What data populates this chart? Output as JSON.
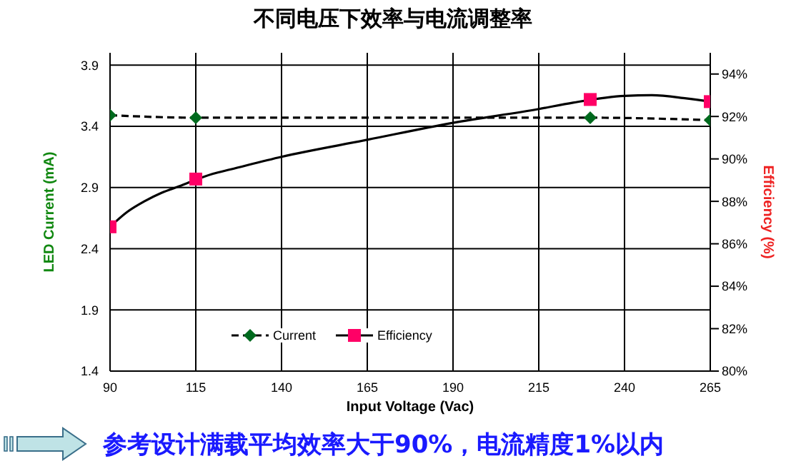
{
  "chart_data": {
    "type": "line",
    "title": "不同电压下效率与电流调整率",
    "xlabel": "Input Voltage (Vac)",
    "ylabel": "LED Current (mA)",
    "y2label": "Efficiency (%)",
    "xlim": [
      90,
      265
    ],
    "xticks": [
      90,
      115,
      140,
      165,
      190,
      215,
      240,
      265
    ],
    "ylim": [
      1.4,
      4.0
    ],
    "yticks": [
      1.4,
      1.9,
      2.4,
      2.9,
      3.4,
      3.9
    ],
    "y2lim": [
      80,
      95
    ],
    "y2ticks": [
      {
        "value": 80,
        "label": "80%"
      },
      {
        "value": 82,
        "label": "82%"
      },
      {
        "value": 84,
        "label": "84%"
      },
      {
        "value": 86,
        "label": "86%"
      },
      {
        "value": 88,
        "label": "88%"
      },
      {
        "value": 90,
        "label": "90%"
      },
      {
        "value": 92,
        "label": "92%"
      },
      {
        "value": 94,
        "label": "94%"
      }
    ],
    "grid": true,
    "legend": "bottom",
    "series": [
      {
        "name": "Current",
        "color": "#000000",
        "colors": [
          "#006a1e",
          "#006a1e",
          "#006a1e",
          "#006a1e"
        ],
        "line_style": "dashed",
        "marker": "diamond",
        "x": [
          90,
          115,
          230,
          265
        ],
        "values": [
          3.49,
          3.47,
          3.47,
          3.45
        ]
      },
      {
        "axis": "y2",
        "color": "#000000",
        "line_style": "solid",
        "marker": "none",
        "x": [
          90,
          95,
          100,
          105,
          110,
          120,
          125,
          140,
          165,
          190,
          215,
          225,
          240,
          248,
          258,
          265
        ],
        "values": [
          86.8,
          87.5,
          88.0,
          88.4,
          88.7,
          89.3,
          89.5,
          90.1,
          90.9,
          91.7,
          92.35,
          92.65,
          92.97,
          93.0,
          92.85,
          92.7
        ]
      },
      {
        "name": "Efficiency",
        "type": "scatter",
        "axis": "y2",
        "color": "#ff0066",
        "marker": "square",
        "x": [
          90,
          115,
          230,
          265
        ],
        "values": [
          86.8,
          89.05,
          92.8,
          92.7
        ]
      }
    ],
    "annotations": [
      "参考设计满载平均效率大于90%，电流精度1%以内"
    ]
  }
}
